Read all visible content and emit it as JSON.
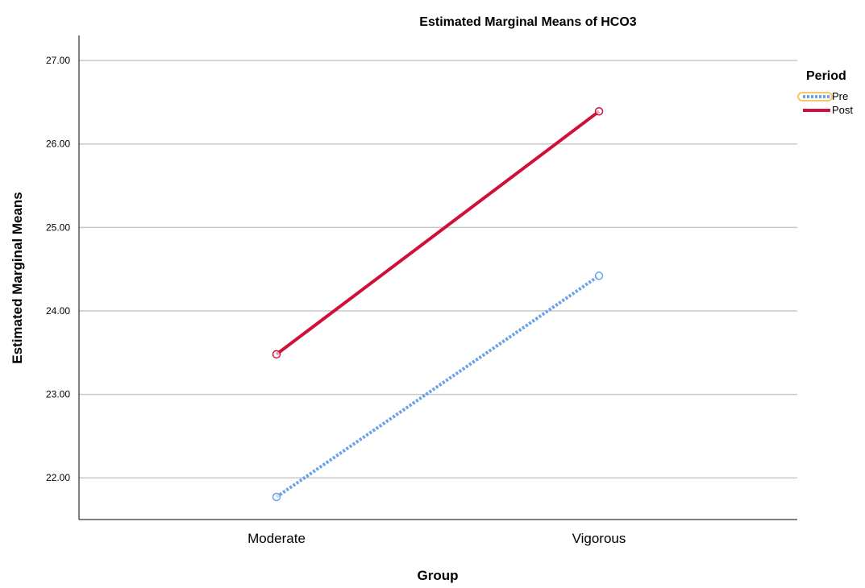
{
  "chart_data": {
    "type": "line",
    "title": "Estimated Marginal Means of HCO3",
    "xlabel": "Group",
    "ylabel": "Estimated Marginal Means",
    "categories": [
      "Moderate",
      "Vigorous"
    ],
    "y_ticks": [
      "22.00",
      "23.00",
      "24.00",
      "25.00",
      "26.00",
      "27.00"
    ],
    "ylim": [
      21.5,
      27.3
    ],
    "grid": true,
    "legend": {
      "title": "Period",
      "placement": "top-right"
    },
    "series": [
      {
        "name": "Pre",
        "values": [
          21.77,
          24.42
        ],
        "color": "#6aa3e8",
        "dash": "dotted",
        "highlighted": true,
        "highlight_color": "#f5c767"
      },
      {
        "name": "Post",
        "values": [
          23.48,
          26.39
        ],
        "color": "#d0103a",
        "dash": "solid"
      }
    ]
  }
}
